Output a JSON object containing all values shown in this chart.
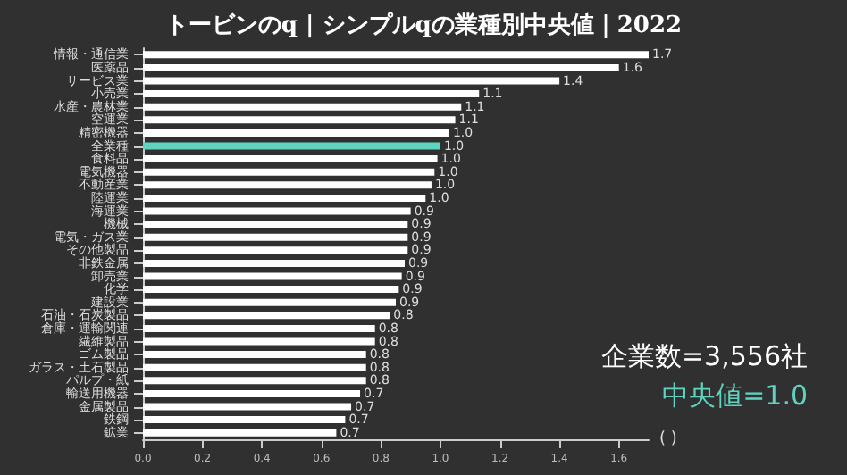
{
  "chart_data": {
    "type": "bar",
    "orientation": "horizontal",
    "title": "トービンのq | シンプルqの業種別中央値｜2022",
    "xlabel": "( )",
    "categories": [
      "情報・通信業",
      "医薬品",
      "サービス業",
      "小売業",
      "水産・農林業",
      "空運業",
      "精密機器",
      "全業種",
      "食料品",
      "電気機器",
      "不動産業",
      "陸運業",
      "海運業",
      "機械",
      "電気・ガス業",
      "その他製品",
      "非鉄金属",
      "卸売業",
      "化学",
      "建設業",
      "石油・石炭製品",
      "倉庫・運輸関連",
      "繊維製品",
      "ゴム製品",
      "ガラス・土石製品",
      "パルプ・紙",
      "輸送用機器",
      "金属製品",
      "鉄鋼",
      "鉱業"
    ],
    "values": [
      1.7,
      1.6,
      1.4,
      1.13,
      1.07,
      1.05,
      1.03,
      1.0,
      0.99,
      0.98,
      0.97,
      0.95,
      0.9,
      0.89,
      0.89,
      0.89,
      0.88,
      0.87,
      0.86,
      0.85,
      0.83,
      0.78,
      0.78,
      0.75,
      0.75,
      0.75,
      0.73,
      0.7,
      0.68,
      0.65
    ],
    "colors": [
      "#ffffff",
      "#ffffff",
      "#ffffff",
      "#ffffff",
      "#ffffff",
      "#ffffff",
      "#ffffff",
      "#5fd3bf",
      "#ffffff",
      "#ffffff",
      "#ffffff",
      "#ffffff",
      "#ffffff",
      "#ffffff",
      "#ffffff",
      "#ffffff",
      "#ffffff",
      "#ffffff",
      "#ffffff",
      "#ffffff",
      "#ffffff",
      "#ffffff",
      "#ffffff",
      "#ffffff",
      "#ffffff",
      "#ffffff",
      "#ffffff",
      "#ffffff",
      "#ffffff",
      "#ffffff"
    ],
    "value_labels": [
      "1.7",
      "1.6",
      "1.4",
      "1.1",
      "1.1",
      "1.1",
      "1.0",
      "1.0",
      "1.0",
      "1.0",
      "1.0",
      "1.0",
      "0.9",
      "0.9",
      "0.9",
      "0.9",
      "0.9",
      "0.9",
      "0.9",
      "0.9",
      "0.8",
      "0.8",
      "0.8",
      "0.8",
      "0.8",
      "0.8",
      "0.7",
      "0.7",
      "0.7",
      "0.7"
    ],
    "xlim": [
      0,
      1.7
    ],
    "xticks": [
      {
        "value": 0,
        "label": "0.0"
      },
      {
        "value": 0.2,
        "label": "0.2"
      },
      {
        "value": 0.4,
        "label": "0.4"
      },
      {
        "value": 0.6,
        "label": "0.6"
      },
      {
        "value": 0.8,
        "label": "0.8"
      },
      {
        "value": 1,
        "label": "1.0"
      },
      {
        "value": 1.2,
        "label": "1.2"
      },
      {
        "value": 1.4,
        "label": "1.4"
      },
      {
        "value": 1.6,
        "label": "1.6"
      }
    ],
    "grid": false,
    "annotations": [
      "企業数=3,556社",
      "中央値=1.0"
    ]
  }
}
